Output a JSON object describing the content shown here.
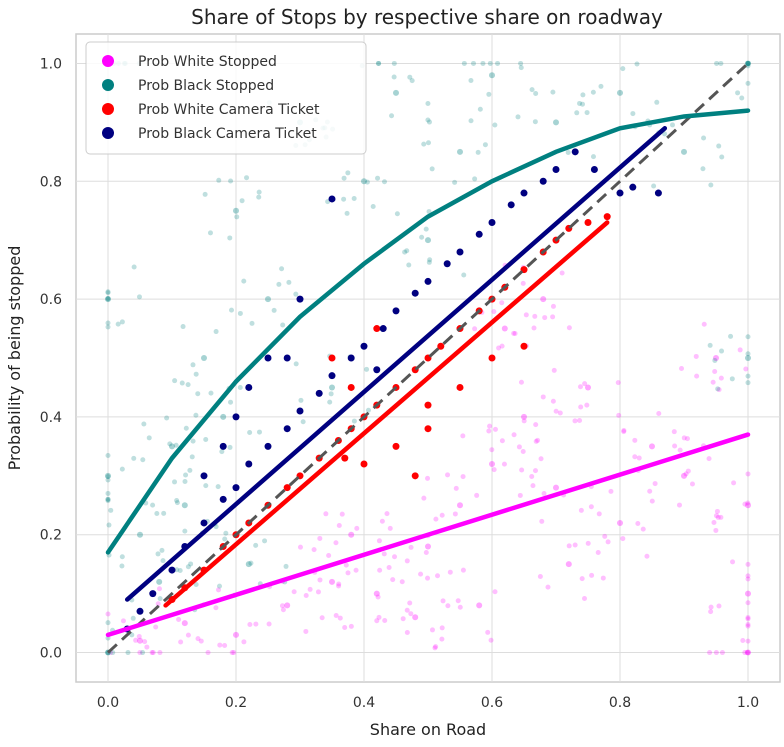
{
  "chart_data": {
    "type": "scatter",
    "title": "Share of Stops by respective share on roadway",
    "xlabel": "Share on Road",
    "ylabel": "Probability of being stopped",
    "xlim": [
      -0.05,
      1.05
    ],
    "ylim": [
      -0.05,
      1.05
    ],
    "xticks": [
      0.0,
      0.2,
      0.4,
      0.6,
      0.8,
      1.0
    ],
    "yticks": [
      0.0,
      0.2,
      0.4,
      0.6,
      0.8,
      1.0
    ],
    "xtick_labels": [
      "0.0",
      "0.2",
      "0.4",
      "0.6",
      "0.8",
      "1.0"
    ],
    "ytick_labels": [
      "0.0",
      "0.2",
      "0.4",
      "0.6",
      "0.8",
      "1.0"
    ],
    "grid": true,
    "legend_position": "top-left",
    "identity_line": {
      "x": [
        0.0,
        1.0
      ],
      "y": [
        0.0,
        1.0
      ],
      "style": "dashed",
      "color": "#555555"
    },
    "series": [
      {
        "name": "Prob White Stopped",
        "color": "#ff00ff",
        "kind": "scatter-dense",
        "points": [
          [
            0.05,
            0.02
          ],
          [
            0.12,
            0.05
          ],
          [
            0.2,
            0.03
          ],
          [
            0.28,
            0.08
          ],
          [
            0.35,
            0.12
          ],
          [
            0.42,
            0.1
          ],
          [
            0.5,
            0.18
          ],
          [
            0.55,
            0.25
          ],
          [
            0.6,
            0.32
          ],
          [
            0.65,
            0.4
          ],
          [
            0.7,
            0.28
          ],
          [
            0.75,
            0.45
          ],
          [
            0.8,
            0.22
          ],
          [
            0.85,
            0.35
          ],
          [
            0.9,
            0.3
          ],
          [
            0.95,
            0.5
          ],
          [
            1.0,
            0.0
          ],
          [
            1.0,
            0.1
          ],
          [
            1.0,
            0.25
          ],
          [
            0.62,
            0.55
          ],
          [
            0.48,
            0.06
          ],
          [
            0.38,
            0.2
          ],
          [
            0.68,
            0.6
          ],
          [
            0.58,
            0.08
          ],
          [
            0.72,
            0.15
          ]
        ],
        "fit": {
          "x": [
            0.0,
            1.0
          ],
          "y": [
            0.03,
            0.37
          ]
        }
      },
      {
        "name": "Prob Black Stopped",
        "color": "#008080",
        "kind": "scatter-dense",
        "points": [
          [
            0.0,
            0.0
          ],
          [
            0.0,
            0.3
          ],
          [
            0.0,
            0.6
          ],
          [
            0.0,
            1.0
          ],
          [
            0.05,
            0.2
          ],
          [
            0.1,
            0.35
          ],
          [
            0.15,
            0.5
          ],
          [
            0.2,
            0.75
          ],
          [
            0.25,
            0.6
          ],
          [
            0.3,
            0.9
          ],
          [
            0.35,
            0.45
          ],
          [
            0.4,
            0.8
          ],
          [
            0.45,
            0.95
          ],
          [
            0.5,
            0.7
          ],
          [
            0.55,
            0.85
          ],
          [
            0.6,
            0.98
          ],
          [
            0.7,
            0.9
          ],
          [
            0.8,
            0.95
          ],
          [
            0.9,
            0.85
          ],
          [
            1.0,
            1.0
          ],
          [
            1.0,
            0.5
          ],
          [
            0.08,
            0.12
          ],
          [
            0.12,
            0.25
          ],
          [
            0.18,
            0.4
          ],
          [
            0.22,
            0.15
          ]
        ],
        "fit": {
          "x": [
            0.0,
            0.1,
            0.2,
            0.3,
            0.4,
            0.5,
            0.6,
            0.7,
            0.8,
            0.9,
            1.0
          ],
          "y": [
            0.17,
            0.33,
            0.46,
            0.57,
            0.66,
            0.74,
            0.8,
            0.85,
            0.89,
            0.91,
            0.92
          ]
        }
      },
      {
        "name": "Prob White Camera Ticket",
        "color": "#ff0000",
        "kind": "scatter",
        "points": [
          [
            0.1,
            0.09
          ],
          [
            0.12,
            0.11
          ],
          [
            0.15,
            0.14
          ],
          [
            0.18,
            0.18
          ],
          [
            0.2,
            0.2
          ],
          [
            0.22,
            0.22
          ],
          [
            0.25,
            0.25
          ],
          [
            0.28,
            0.28
          ],
          [
            0.3,
            0.3
          ],
          [
            0.33,
            0.33
          ],
          [
            0.36,
            0.36
          ],
          [
            0.38,
            0.38
          ],
          [
            0.4,
            0.4
          ],
          [
            0.42,
            0.42
          ],
          [
            0.45,
            0.45
          ],
          [
            0.48,
            0.48
          ],
          [
            0.5,
            0.5
          ],
          [
            0.52,
            0.52
          ],
          [
            0.55,
            0.55
          ],
          [
            0.58,
            0.58
          ],
          [
            0.6,
            0.6
          ],
          [
            0.62,
            0.62
          ],
          [
            0.65,
            0.65
          ],
          [
            0.68,
            0.68
          ],
          [
            0.7,
            0.7
          ],
          [
            0.72,
            0.72
          ],
          [
            0.75,
            0.73
          ],
          [
            0.78,
            0.74
          ],
          [
            0.4,
            0.32
          ],
          [
            0.45,
            0.35
          ],
          [
            0.5,
            0.38
          ],
          [
            0.55,
            0.45
          ],
          [
            0.6,
            0.5
          ],
          [
            0.65,
            0.52
          ],
          [
            0.38,
            0.45
          ],
          [
            0.42,
            0.55
          ],
          [
            0.35,
            0.5
          ],
          [
            0.5,
            0.42
          ],
          [
            0.48,
            0.3
          ],
          [
            0.37,
            0.33
          ]
        ],
        "fit": {
          "x": [
            0.09,
            0.78
          ],
          "y": [
            0.08,
            0.73
          ]
        }
      },
      {
        "name": "Prob Black Camera Ticket",
        "color": "#000080",
        "kind": "scatter",
        "points": [
          [
            0.03,
            0.04
          ],
          [
            0.05,
            0.07
          ],
          [
            0.07,
            0.1
          ],
          [
            0.1,
            0.14
          ],
          [
            0.12,
            0.18
          ],
          [
            0.15,
            0.22
          ],
          [
            0.18,
            0.26
          ],
          [
            0.2,
            0.28
          ],
          [
            0.22,
            0.32
          ],
          [
            0.25,
            0.35
          ],
          [
            0.28,
            0.38
          ],
          [
            0.3,
            0.41
          ],
          [
            0.33,
            0.44
          ],
          [
            0.35,
            0.47
          ],
          [
            0.38,
            0.5
          ],
          [
            0.4,
            0.52
          ],
          [
            0.43,
            0.55
          ],
          [
            0.45,
            0.58
          ],
          [
            0.48,
            0.61
          ],
          [
            0.5,
            0.63
          ],
          [
            0.53,
            0.66
          ],
          [
            0.55,
            0.68
          ],
          [
            0.58,
            0.71
          ],
          [
            0.6,
            0.73
          ],
          [
            0.63,
            0.76
          ],
          [
            0.65,
            0.78
          ],
          [
            0.68,
            0.8
          ],
          [
            0.7,
            0.82
          ],
          [
            0.73,
            0.85
          ],
          [
            0.76,
            0.82
          ],
          [
            0.8,
            0.78
          ],
          [
            0.82,
            0.79
          ],
          [
            0.86,
            0.78
          ],
          [
            0.35,
            0.77
          ],
          [
            0.28,
            0.5
          ],
          [
            0.25,
            0.5
          ],
          [
            0.18,
            0.35
          ],
          [
            0.2,
            0.4
          ],
          [
            0.15,
            0.3
          ],
          [
            0.22,
            0.45
          ],
          [
            0.3,
            0.6
          ],
          [
            0.42,
            0.48
          ]
        ],
        "fit": {
          "x": [
            0.03,
            0.87
          ],
          "y": [
            0.09,
            0.89
          ]
        }
      }
    ]
  }
}
